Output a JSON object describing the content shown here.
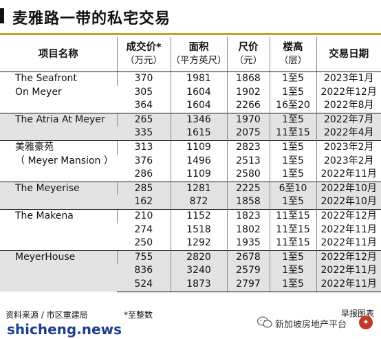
{
  "title": "麦雅路一带的私宅交易",
  "headers": {
    "name": "项目名称",
    "price": "成交价*",
    "price_unit": "（万元）",
    "area": "面积",
    "area_unit": "（平方英尺）",
    "psf": "尺价",
    "psf_unit": "（元）",
    "floor": "楼高",
    "floor_unit": "（层）",
    "date": "交易日期"
  },
  "projects": [
    {
      "name": "The Seafront\nOn Meyer",
      "shade": false,
      "rows": [
        {
          "price": "370",
          "area": "1981",
          "psf": "1868",
          "floor": "1至5",
          "date": "2023年1月"
        },
        {
          "price": "305",
          "area": "1604",
          "psf": "1902",
          "floor": "1至5",
          "date": "2022年12月"
        },
        {
          "price": "364",
          "area": "1604",
          "psf": "2266",
          "floor": "16至20",
          "date": "2022年8月"
        }
      ]
    },
    {
      "name": "The Atria At Meyer",
      "shade": true,
      "rows": [
        {
          "price": "265",
          "area": "1346",
          "psf": "1970",
          "floor": "1至5",
          "date": "2022年7月"
        },
        {
          "price": "335",
          "area": "1615",
          "psf": "2075",
          "floor": "11至15",
          "date": "2022年4月"
        }
      ]
    },
    {
      "name": "美雅豪苑\n（ Meyer Mansion ）",
      "shade": false,
      "rows": [
        {
          "price": "313",
          "area": "1109",
          "psf": "2823",
          "floor": "1至5",
          "date": "2023年2月"
        },
        {
          "price": "376",
          "area": "1496",
          "psf": "2513",
          "floor": "1至5",
          "date": "2023年2月"
        },
        {
          "price": "286",
          "area": "1109",
          "psf": "2580",
          "floor": "1至5",
          "date": "2022年11月"
        }
      ]
    },
    {
      "name": "The Meyerise",
      "shade": true,
      "rows": [
        {
          "price": "285",
          "area": "1281",
          "psf": "2225",
          "floor": "6至10",
          "date": "2022年10月"
        },
        {
          "price": "162",
          "area": "872",
          "psf": "1858",
          "floor": "1至5",
          "date": "2022年10月"
        }
      ]
    },
    {
      "name": "The Makena",
      "shade": false,
      "rows": [
        {
          "price": "210",
          "area": "1152",
          "psf": "1823",
          "floor": "11至15",
          "date": "2022年12月"
        },
        {
          "price": "274",
          "area": "1518",
          "psf": "1802",
          "floor": "11至15",
          "date": "2022年11月"
        },
        {
          "price": "250",
          "area": "1292",
          "psf": "1935",
          "floor": "11至15",
          "date": "2022年11月"
        }
      ]
    },
    {
      "name": "MeyerHouse",
      "shade": true,
      "rows": [
        {
          "price": "755",
          "area": "2820",
          "psf": "2678",
          "floor": "1至5",
          "date": "2022年12月"
        },
        {
          "price": "836",
          "area": "3240",
          "psf": "2579",
          "floor": "1至5",
          "date": "2022年11月"
        },
        {
          "price": "524",
          "area": "1873",
          "psf": "2797",
          "floor": "1至5",
          "date": "2022年11月"
        }
      ]
    }
  ],
  "footer": {
    "source": "资料来源 / 市区重建局",
    "note": "*至整数",
    "credit": "早报图表",
    "watermark": "shicheng.news",
    "wechat_account": "新加坡房地产平台"
  },
  "colors": {
    "accent_line": "#c9a02c",
    "shade": "#e3e3e3",
    "watermark": "#1f3f8f"
  }
}
